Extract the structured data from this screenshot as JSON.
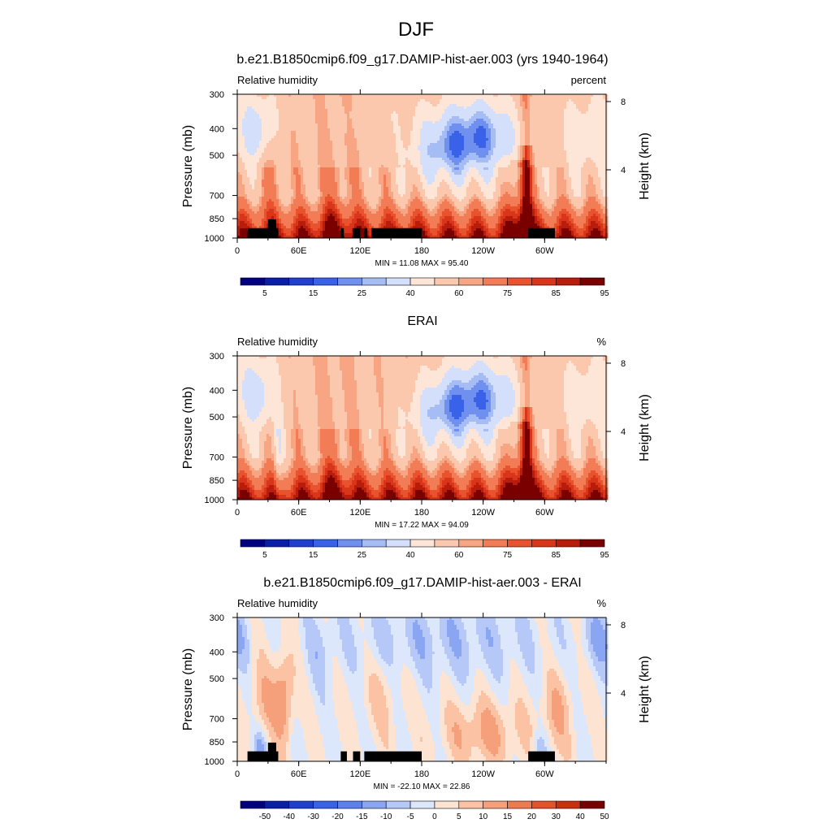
{
  "figure": {
    "title": "DJF"
  },
  "colors": {
    "rh_levels": [
      "#000080",
      "#0a1fa8",
      "#1f3fcf",
      "#3a62e8",
      "#7090ef",
      "#a6bcf4",
      "#d4e0fb",
      "#fde6d8",
      "#fbc8ae",
      "#f7a583",
      "#f27c56",
      "#e8532e",
      "#d8351b",
      "#b81d0c",
      "#7a0000"
    ],
    "diff_levels": [
      "#000080",
      "#0a1fa8",
      "#1f3fcf",
      "#3a62e8",
      "#5d80ef",
      "#8aa6f2",
      "#b6c8f7",
      "#dde7fc",
      "#fde3d2",
      "#fbc2a4",
      "#f6a07b",
      "#ef7a51",
      "#e4512b",
      "#c8300f",
      "#7a0000"
    ]
  },
  "chart_data": [
    {
      "type": "heatmap",
      "title": "b.e21.B1850cmip6.f09_g17.DAMIP-hist-aer.003 (yrs 1940-1964)",
      "left_label": "Relative humidity",
      "right_label": "percent",
      "ylabel": "Pressure (mb)",
      "ylabel_right": "Height (km)",
      "x_ticks": [
        "0",
        "60E",
        "120E",
        "180",
        "120W",
        "60W"
      ],
      "x_tick_values": [
        0,
        60,
        120,
        180,
        240,
        300
      ],
      "xlim": [
        0,
        360
      ],
      "y_ticks": [
        "300",
        "400",
        "500",
        "700",
        "850",
        "1000"
      ],
      "y_tick_values": [
        300,
        400,
        500,
        700,
        850,
        1000
      ],
      "ylim": [
        300,
        1000
      ],
      "y_scale": "log",
      "right_ticks": [
        "8",
        "4"
      ],
      "right_tick_values": [
        8,
        4
      ],
      "min_max": "MIN =  11.08  MAX =  95.40",
      "min": 11.08,
      "max": 95.4,
      "colorbar": {
        "levels": [
          5,
          10,
          15,
          20,
          25,
          30,
          40,
          50,
          60,
          65,
          75,
          80,
          85,
          90,
          95
        ],
        "labels": [
          "5",
          "15",
          "25",
          "40",
          "60",
          "75",
          "85",
          "95"
        ]
      },
      "terrain": [
        [
          10,
          40,
          920
        ],
        [
          30,
          38,
          855
        ],
        [
          101,
          104,
          920
        ],
        [
          113,
          120,
          920
        ],
        [
          124,
          127,
          920
        ],
        [
          131,
          180,
          920
        ],
        [
          284,
          310,
          920
        ]
      ]
    },
    {
      "type": "heatmap",
      "title": "ERAI",
      "left_label": "Relative humidity",
      "right_label": "%",
      "ylabel": "Pressure (mb)",
      "ylabel_right": "Height (km)",
      "x_ticks": [
        "0",
        "60E",
        "120E",
        "180",
        "120W",
        "60W"
      ],
      "x_tick_values": [
        0,
        60,
        120,
        180,
        240,
        300
      ],
      "xlim": [
        0,
        360
      ],
      "y_ticks": [
        "300",
        "400",
        "500",
        "700",
        "850",
        "1000"
      ],
      "y_tick_values": [
        300,
        400,
        500,
        700,
        850,
        1000
      ],
      "ylim": [
        300,
        1000
      ],
      "y_scale": "log",
      "right_ticks": [
        "8",
        "4"
      ],
      "right_tick_values": [
        8,
        4
      ],
      "min_max": "MIN =  17.22  MAX =  94.09",
      "min": 17.22,
      "max": 94.09,
      "colorbar": {
        "levels": [
          5,
          10,
          15,
          20,
          25,
          30,
          40,
          50,
          60,
          65,
          75,
          80,
          85,
          90,
          95
        ],
        "labels": [
          "5",
          "15",
          "25",
          "40",
          "60",
          "75",
          "85",
          "95"
        ]
      },
      "terrain": []
    },
    {
      "type": "heatmap",
      "title": "b.e21.B1850cmip6.f09_g17.DAMIP-hist-aer.003 - ERAI",
      "left_label": "Relative humidity",
      "right_label": "%",
      "ylabel": "Pressure (mb)",
      "ylabel_right": "Height (km)",
      "x_ticks": [
        "0",
        "60E",
        "120E",
        "180",
        "120W",
        "60W"
      ],
      "x_tick_values": [
        0,
        60,
        120,
        180,
        240,
        300
      ],
      "xlim": [
        0,
        360
      ],
      "y_ticks": [
        "300",
        "400",
        "500",
        "700",
        "850",
        "1000"
      ],
      "y_tick_values": [
        300,
        400,
        500,
        700,
        850,
        1000
      ],
      "ylim": [
        300,
        1000
      ],
      "y_scale": "log",
      "right_ticks": [
        "8",
        "4"
      ],
      "right_tick_values": [
        8,
        4
      ],
      "min_max": "MIN = -22.10  MAX =  22.86",
      "min": -22.1,
      "max": 22.86,
      "colorbar": {
        "levels": [
          -50,
          -40,
          -30,
          -20,
          -15,
          -10,
          -5,
          0,
          5,
          10,
          15,
          20,
          30,
          40,
          50
        ],
        "labels": [
          "-50",
          "-40",
          "-30",
          "-20",
          "-15",
          "-10",
          "-5",
          "0",
          "5",
          "10",
          "15",
          "20",
          "30",
          "40",
          "50"
        ]
      },
      "terrain": [
        [
          10,
          40,
          920
        ],
        [
          30,
          38,
          855
        ],
        [
          101,
          107,
          920
        ],
        [
          113,
          120,
          920
        ],
        [
          124,
          180,
          920
        ],
        [
          284,
          310,
          920
        ]
      ]
    }
  ]
}
